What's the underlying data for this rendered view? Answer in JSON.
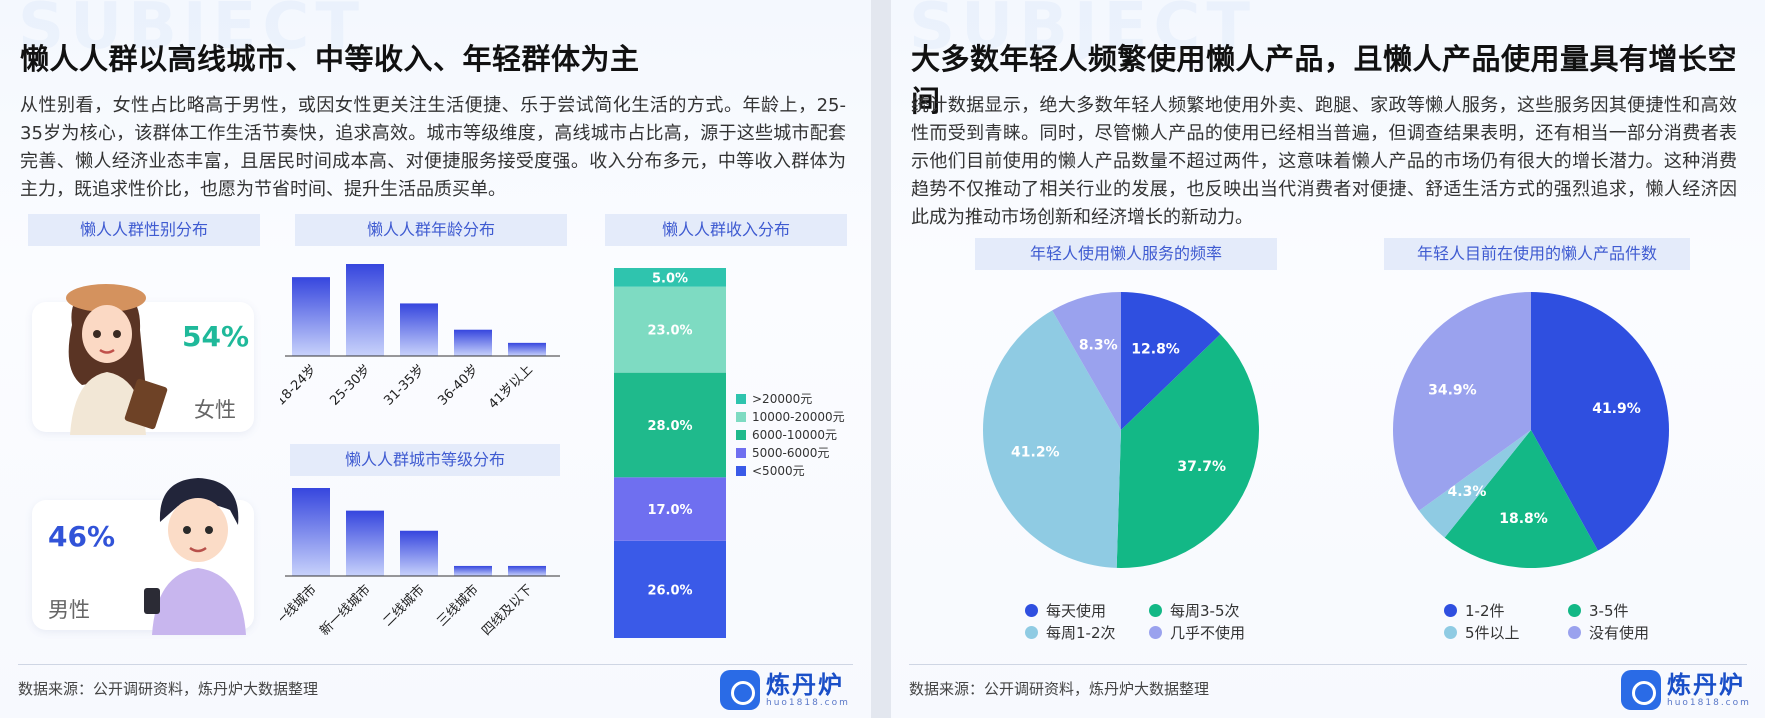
{
  "left": {
    "title": "懒人人群以高线城市、中等收入、年轻群体为主",
    "paragraph": "从性别看，女性占比略高于男性，或因女性更关注生活便捷、乐于尝试简化生活的方式。年龄上，25-35岁为核心，该群体工作生活节奏快，追求高效。城市等级维度，高线城市占比高，源于这些城市配套完善、懒人经济业态丰富，且居民时间成本高、对便捷服务接受度强。收入分布多元，中等收入群体为主力，既追求性价比，也愿为节省时间、提升生活品质买单。",
    "gender_heading": "懒人人群性别分布",
    "age_heading": "懒人人群年龄分布",
    "income_heading": "懒人人群收入分布",
    "city_heading": "懒人人群城市等级分布",
    "female_pct": "54%",
    "female_label": "女性",
    "male_pct": "46%",
    "male_label": "男性",
    "source": "数据来源：公开调研资料，炼丹炉大数据整理",
    "logo_name": "炼丹炉",
    "logo_url": "huo1818.com"
  },
  "right": {
    "title": "大多数年轻人频繁使用懒人产品，且懒人产品使用量具有增长空间",
    "paragraph": "统计数据显示，绝大多数年轻人频繁地使用外卖、跑腿、家政等懒人服务，这些服务因其便捷性和高效性而受到青睐。同时，尽管懒人产品的使用已经相当普遍，但调查结果表明，还有相当一部分消费者表示他们目前使用的懒人产品数量不超过两件，这意味着懒人产品的市场仍有很大的增长潜力。这种消费趋势不仅推动了相关行业的发展，也反映出当代消费者对便捷、舒适生活方式的强烈追求，懒人经济因此成为推动市场创新和经济增长的新动力。",
    "freq_heading": "年轻人使用懒人服务的频率",
    "count_heading": "年轻人目前在使用的懒人产品件数",
    "source": "数据来源：公开调研资料，炼丹炉大数据整理",
    "logo_name": "炼丹炉",
    "logo_url": "huo1818.com"
  },
  "chart_data": [
    {
      "type": "bar",
      "title": "懒人人群年龄分布",
      "categories": [
        "18-24岁",
        "25-30岁",
        "31-35岁",
        "36-40岁",
        "41岁以上"
      ],
      "values": [
        30,
        35,
        20,
        10,
        5
      ],
      "color": "#3a4ee0"
    },
    {
      "type": "bar",
      "title": "懒人人群城市等级分布",
      "categories": [
        "一线城市",
        "新一线城市",
        "二线城市",
        "三线城市",
        "四线及以下"
      ],
      "values": [
        35,
        26,
        18,
        4,
        4
      ],
      "color": "#3a4ee0"
    },
    {
      "type": "bar",
      "stacked": true,
      "title": "懒人人群收入分布",
      "series": [
        {
          "name": "<5000元",
          "value": 26.0,
          "label": "26.0%",
          "color": "#3a5ae8"
        },
        {
          "name": "5000-6000元",
          "value": 17.0,
          "label": "17.0%",
          "color": "#6f6ff0"
        },
        {
          "name": "6000-10000元",
          "value": 28.0,
          "label": "28.0%",
          "color": "#1fba8c"
        },
        {
          "name": "10000-20000元",
          "value": 23.0,
          "label": "23.0%",
          "color": "#7edbc2"
        },
        {
          "name": ">20000元",
          "value": 5.0,
          "label": "5.0%",
          "color": "#2fc4ae"
        }
      ],
      "legend_order": [
        ">20000元",
        "10000-20000元",
        "6000-10000元",
        "5000-6000元",
        "<5000元"
      ]
    },
    {
      "type": "pie",
      "title": "年轻人使用懒人服务的频率",
      "slices": [
        {
          "name": "每天使用",
          "value": 12.8,
          "label": "12.8%",
          "color": "#2f4fe0"
        },
        {
          "name": "每周3-5次",
          "value": 37.7,
          "label": "37.7%",
          "color": "#13b886"
        },
        {
          "name": "每周1-2次",
          "value": 41.2,
          "label": "41.2%",
          "color": "#8fcbe3"
        },
        {
          "name": "几乎不使用",
          "value": 8.3,
          "label": "8.3%",
          "color": "#9aa2ee"
        }
      ]
    },
    {
      "type": "pie",
      "title": "年轻人目前在使用的懒人产品件数",
      "slices": [
        {
          "name": "1-2件",
          "value": 41.9,
          "label": "41.9%",
          "color": "#2f4fe0"
        },
        {
          "name": "3-5件",
          "value": 18.8,
          "label": "18.8%",
          "color": "#13b886"
        },
        {
          "name": "5件以上",
          "value": 4.3,
          "label": "4.3%",
          "color": "#8fcbe3"
        },
        {
          "name": "没有使用",
          "value": 34.9,
          "label": "34.9%",
          "color": "#9aa2ee"
        }
      ]
    }
  ]
}
